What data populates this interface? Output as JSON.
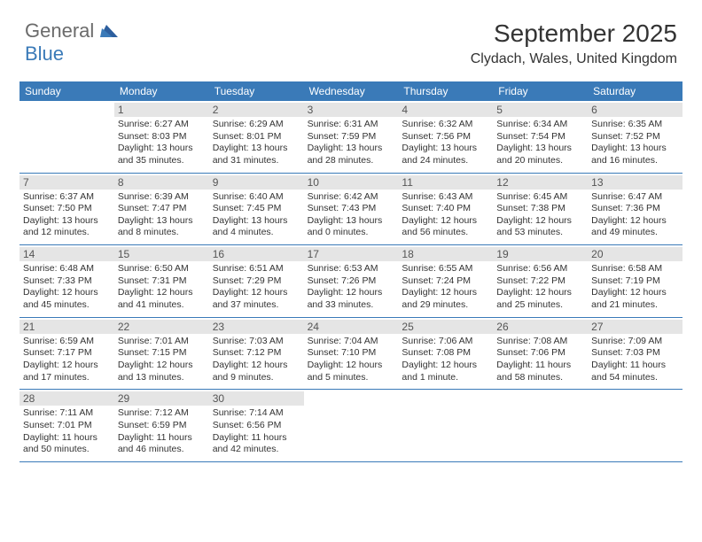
{
  "logo": {
    "general": "General",
    "blue": "Blue"
  },
  "title": "September 2025",
  "location": "Clydach, Wales, United Kingdom",
  "colors": {
    "header_bg": "#3a7ab8",
    "header_text": "#ffffff",
    "daynum_bg": "#e5e5e5",
    "daynum_text": "#555555",
    "body_text": "#333333",
    "logo_general": "#6b6b6b",
    "logo_blue": "#3a7ab8",
    "page_bg": "#ffffff"
  },
  "day_headers": [
    "Sunday",
    "Monday",
    "Tuesday",
    "Wednesday",
    "Thursday",
    "Friday",
    "Saturday"
  ],
  "weeks": [
    [
      null,
      {
        "num": "1",
        "sunrise": "Sunrise: 6:27 AM",
        "sunset": "Sunset: 8:03 PM",
        "daylight": "Daylight: 13 hours and 35 minutes."
      },
      {
        "num": "2",
        "sunrise": "Sunrise: 6:29 AM",
        "sunset": "Sunset: 8:01 PM",
        "daylight": "Daylight: 13 hours and 31 minutes."
      },
      {
        "num": "3",
        "sunrise": "Sunrise: 6:31 AM",
        "sunset": "Sunset: 7:59 PM",
        "daylight": "Daylight: 13 hours and 28 minutes."
      },
      {
        "num": "4",
        "sunrise": "Sunrise: 6:32 AM",
        "sunset": "Sunset: 7:56 PM",
        "daylight": "Daylight: 13 hours and 24 minutes."
      },
      {
        "num": "5",
        "sunrise": "Sunrise: 6:34 AM",
        "sunset": "Sunset: 7:54 PM",
        "daylight": "Daylight: 13 hours and 20 minutes."
      },
      {
        "num": "6",
        "sunrise": "Sunrise: 6:35 AM",
        "sunset": "Sunset: 7:52 PM",
        "daylight": "Daylight: 13 hours and 16 minutes."
      }
    ],
    [
      {
        "num": "7",
        "sunrise": "Sunrise: 6:37 AM",
        "sunset": "Sunset: 7:50 PM",
        "daylight": "Daylight: 13 hours and 12 minutes."
      },
      {
        "num": "8",
        "sunrise": "Sunrise: 6:39 AM",
        "sunset": "Sunset: 7:47 PM",
        "daylight": "Daylight: 13 hours and 8 minutes."
      },
      {
        "num": "9",
        "sunrise": "Sunrise: 6:40 AM",
        "sunset": "Sunset: 7:45 PM",
        "daylight": "Daylight: 13 hours and 4 minutes."
      },
      {
        "num": "10",
        "sunrise": "Sunrise: 6:42 AM",
        "sunset": "Sunset: 7:43 PM",
        "daylight": "Daylight: 13 hours and 0 minutes."
      },
      {
        "num": "11",
        "sunrise": "Sunrise: 6:43 AM",
        "sunset": "Sunset: 7:40 PM",
        "daylight": "Daylight: 12 hours and 56 minutes."
      },
      {
        "num": "12",
        "sunrise": "Sunrise: 6:45 AM",
        "sunset": "Sunset: 7:38 PM",
        "daylight": "Daylight: 12 hours and 53 minutes."
      },
      {
        "num": "13",
        "sunrise": "Sunrise: 6:47 AM",
        "sunset": "Sunset: 7:36 PM",
        "daylight": "Daylight: 12 hours and 49 minutes."
      }
    ],
    [
      {
        "num": "14",
        "sunrise": "Sunrise: 6:48 AM",
        "sunset": "Sunset: 7:33 PM",
        "daylight": "Daylight: 12 hours and 45 minutes."
      },
      {
        "num": "15",
        "sunrise": "Sunrise: 6:50 AM",
        "sunset": "Sunset: 7:31 PM",
        "daylight": "Daylight: 12 hours and 41 minutes."
      },
      {
        "num": "16",
        "sunrise": "Sunrise: 6:51 AM",
        "sunset": "Sunset: 7:29 PM",
        "daylight": "Daylight: 12 hours and 37 minutes."
      },
      {
        "num": "17",
        "sunrise": "Sunrise: 6:53 AM",
        "sunset": "Sunset: 7:26 PM",
        "daylight": "Daylight: 12 hours and 33 minutes."
      },
      {
        "num": "18",
        "sunrise": "Sunrise: 6:55 AM",
        "sunset": "Sunset: 7:24 PM",
        "daylight": "Daylight: 12 hours and 29 minutes."
      },
      {
        "num": "19",
        "sunrise": "Sunrise: 6:56 AM",
        "sunset": "Sunset: 7:22 PM",
        "daylight": "Daylight: 12 hours and 25 minutes."
      },
      {
        "num": "20",
        "sunrise": "Sunrise: 6:58 AM",
        "sunset": "Sunset: 7:19 PM",
        "daylight": "Daylight: 12 hours and 21 minutes."
      }
    ],
    [
      {
        "num": "21",
        "sunrise": "Sunrise: 6:59 AM",
        "sunset": "Sunset: 7:17 PM",
        "daylight": "Daylight: 12 hours and 17 minutes."
      },
      {
        "num": "22",
        "sunrise": "Sunrise: 7:01 AM",
        "sunset": "Sunset: 7:15 PM",
        "daylight": "Daylight: 12 hours and 13 minutes."
      },
      {
        "num": "23",
        "sunrise": "Sunrise: 7:03 AM",
        "sunset": "Sunset: 7:12 PM",
        "daylight": "Daylight: 12 hours and 9 minutes."
      },
      {
        "num": "24",
        "sunrise": "Sunrise: 7:04 AM",
        "sunset": "Sunset: 7:10 PM",
        "daylight": "Daylight: 12 hours and 5 minutes."
      },
      {
        "num": "25",
        "sunrise": "Sunrise: 7:06 AM",
        "sunset": "Sunset: 7:08 PM",
        "daylight": "Daylight: 12 hours and 1 minute."
      },
      {
        "num": "26",
        "sunrise": "Sunrise: 7:08 AM",
        "sunset": "Sunset: 7:06 PM",
        "daylight": "Daylight: 11 hours and 58 minutes."
      },
      {
        "num": "27",
        "sunrise": "Sunrise: 7:09 AM",
        "sunset": "Sunset: 7:03 PM",
        "daylight": "Daylight: 11 hours and 54 minutes."
      }
    ],
    [
      {
        "num": "28",
        "sunrise": "Sunrise: 7:11 AM",
        "sunset": "Sunset: 7:01 PM",
        "daylight": "Daylight: 11 hours and 50 minutes."
      },
      {
        "num": "29",
        "sunrise": "Sunrise: 7:12 AM",
        "sunset": "Sunset: 6:59 PM",
        "daylight": "Daylight: 11 hours and 46 minutes."
      },
      {
        "num": "30",
        "sunrise": "Sunrise: 7:14 AM",
        "sunset": "Sunset: 6:56 PM",
        "daylight": "Daylight: 11 hours and 42 minutes."
      },
      null,
      null,
      null,
      null
    ]
  ]
}
